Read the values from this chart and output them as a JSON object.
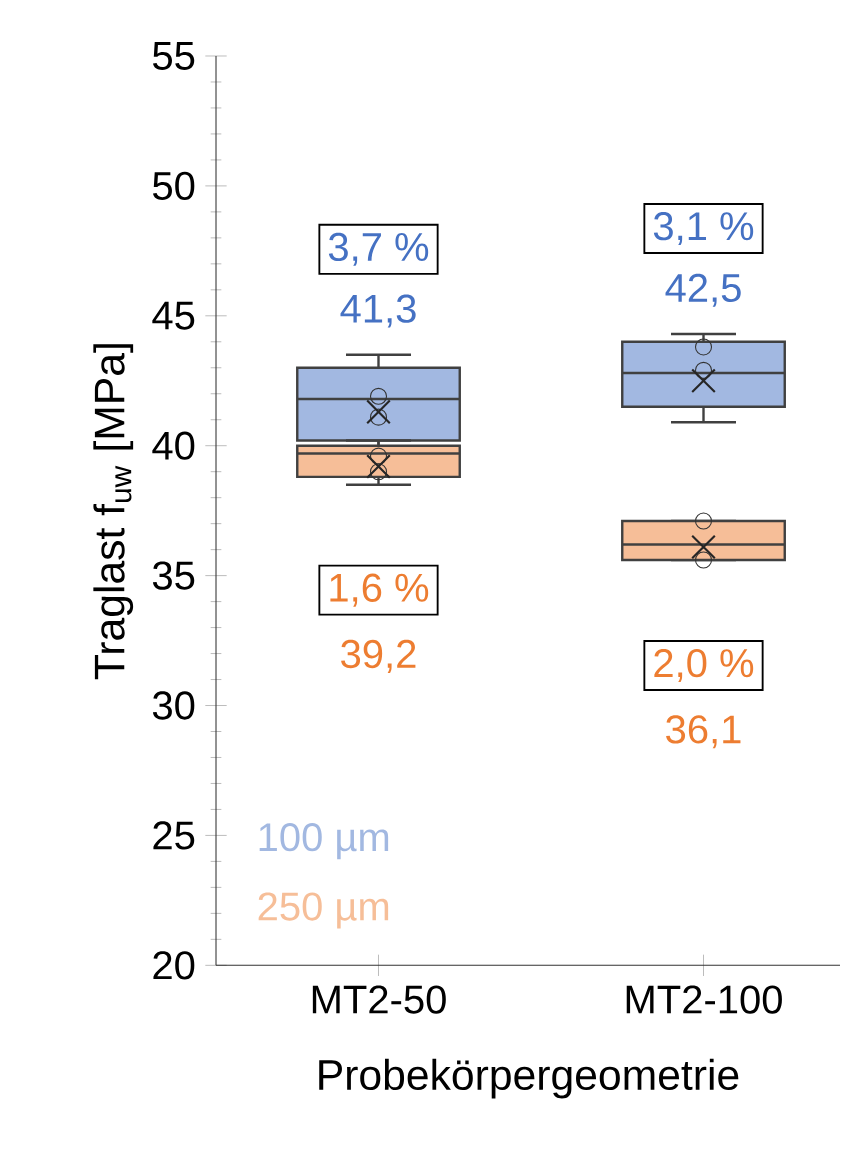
{
  "chart_data": {
    "type": "box",
    "xlabel": "Probekörpergeometrie",
    "ylabel": "Traglast f$_{uw}$ [MPa]",
    "categories": [
      "MT2-50",
      "MT2-100"
    ],
    "ylim": [
      20,
      55
    ],
    "yticks": [
      20,
      25,
      30,
      35,
      40,
      45,
      50,
      55
    ],
    "marker": "cross",
    "series": [
      {
        "name": "100 µm",
        "color": "#a2b8e1",
        "boxes": [
          {
            "low": 39.9,
            "q1": 40.2,
            "median": 41.8,
            "q3": 43.0,
            "high": 43.5,
            "mean": 41.3,
            "outliers": [
              41.1,
              41.9
            ]
          },
          {
            "low": 40.9,
            "q1": 41.5,
            "median": 42.8,
            "q3": 44.0,
            "high": 44.3,
            "mean": 42.5,
            "outliers": [
              43.8,
              42.9
            ]
          }
        ]
      },
      {
        "name": "250 µm",
        "color": "#f6be98",
        "boxes": [
          {
            "low": 38.5,
            "q1": 38.8,
            "median": 39.7,
            "q3": 40.0,
            "high": 40.2,
            "mean": 39.2,
            "outliers": [
              39.6,
              39.0
            ]
          },
          {
            "low": 35.6,
            "q1": 35.6,
            "median": 36.2,
            "q3": 37.1,
            "high": 37.1,
            "mean": 36.1,
            "outliers": [
              37.1,
              35.6
            ]
          }
        ]
      }
    ],
    "annotations": [
      "3,7 %",
      "41,3",
      "1,6 %",
      "39,2",
      "3,1 %",
      "42,5",
      "2,0 %",
      "36,1"
    ]
  }
}
